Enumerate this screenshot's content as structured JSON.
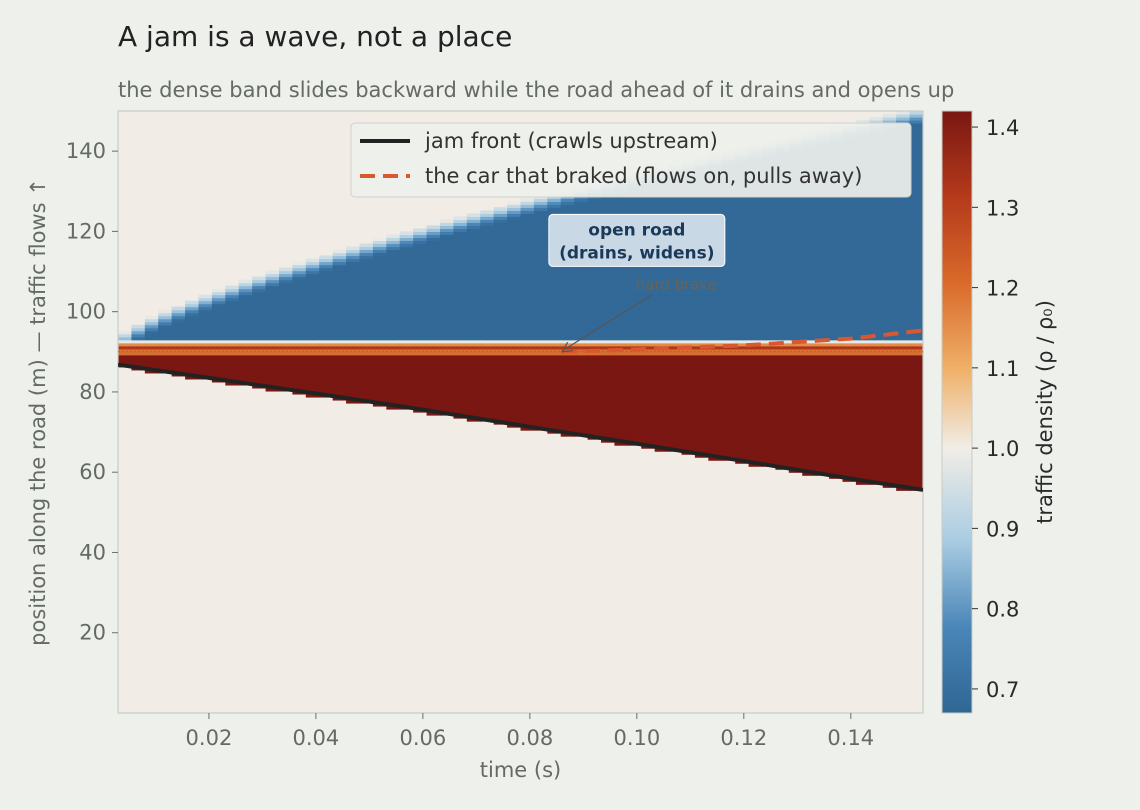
{
  "chart_data": {
    "type": "heatmap",
    "title": "A jam is a wave, not a place",
    "subtitle": "the dense band slides backward while the road ahead of it drains and opens up",
    "xlabel": "time  (s)",
    "ylabel": "position along the road  (m)  —  traffic flows ↑",
    "xlim": [
      0.003,
      0.1535
    ],
    "ylim": [
      0,
      150
    ],
    "x_ticks": [
      0.02,
      0.04,
      0.06,
      0.08,
      0.1,
      0.12,
      0.14
    ],
    "x_tick_labels": [
      "0.02",
      "0.04",
      "0.06",
      "0.08",
      "0.10",
      "0.12",
      "0.14"
    ],
    "y_ticks": [
      20,
      40,
      60,
      80,
      100,
      120,
      140
    ],
    "y_tick_labels": [
      "20",
      "40",
      "60",
      "80",
      "100",
      "120",
      "140"
    ],
    "colorbar": {
      "label": "traffic density  (ρ / ρ₀)",
      "vmin": 0.67,
      "vmax": 1.42,
      "ticks": [
        0.7,
        0.8,
        0.9,
        1.0,
        1.1,
        1.2,
        1.3,
        1.4
      ],
      "tick_labels": [
        "0.7",
        "0.8",
        "0.9",
        "1.0",
        "1.1",
        "1.2",
        "1.3",
        "1.4"
      ],
      "colors": [
        "#2f6694",
        "#4a86b8",
        "#a9cce2",
        "#f1ede6",
        "#efb068",
        "#d96a2b",
        "#b53a1b",
        "#7a1712"
      ]
    },
    "grid": false,
    "legend_position": "upper-right",
    "brake_position_m": 90,
    "series": [
      {
        "name": "jam front (crawls upstream)",
        "style": "solid",
        "color": "#222222",
        "x": [
          0.003,
          0.02,
          0.04,
          0.06,
          0.08,
          0.1,
          0.12,
          0.14,
          0.1535
        ],
        "y": [
          86.8,
          83.5,
          79.6,
          75.6,
          71.3,
          67.1,
          62.8,
          58.4,
          55.6
        ]
      },
      {
        "name": "the car that braked (flows on, pulls away)",
        "style": "dashed",
        "color": "#d9582f",
        "x": [
          0.086,
          0.1,
          0.12,
          0.14,
          0.1535
        ],
        "y": [
          90.0,
          90.6,
          91.6,
          93.3,
          95.3
        ]
      }
    ],
    "annotations": [
      {
        "text": "open road\n(drains, widens)",
        "lines": [
          "open road",
          "(drains, widens)"
        ],
        "x": 0.1,
        "y": 118
      },
      {
        "text": "hard brake",
        "x": 0.107,
        "y": 105,
        "arrow_to": [
          0.086,
          90
        ]
      }
    ]
  }
}
